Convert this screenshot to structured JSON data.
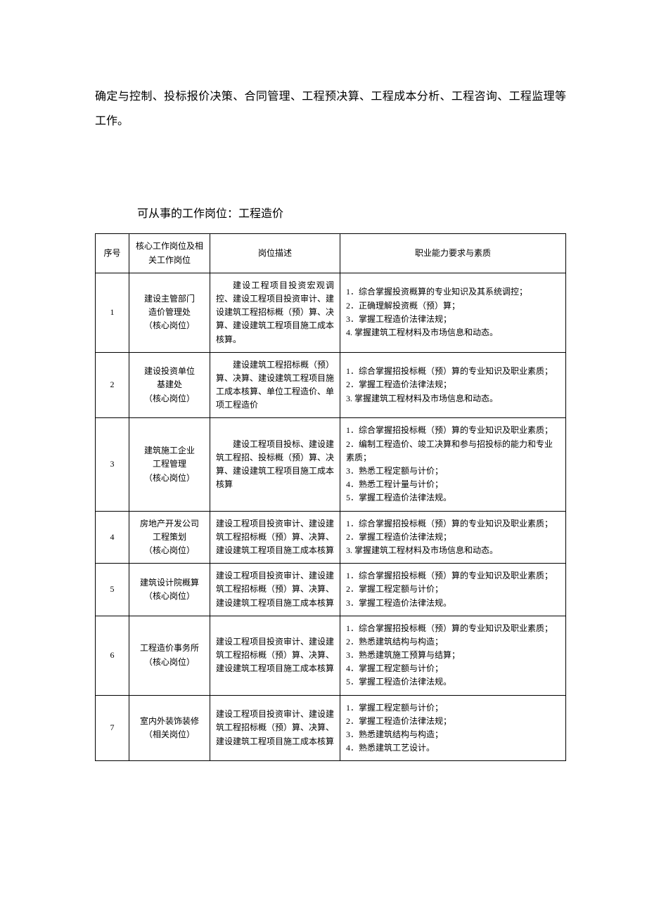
{
  "intro": "确定与控制、投标报价决策、合同管理、工程预决算、工程成本分析、工程咨询、工程监理等工作。",
  "section_title": "可从事的工作岗位：工程造价",
  "headers": {
    "num": "序号",
    "position": "核心工作岗位及相关工作岗位",
    "description": "岗位描述",
    "requirements": "职业能力要求与素质"
  },
  "rows": [
    {
      "num": "1",
      "position": "建设主管部门\n造价管理处\n（核心岗位）",
      "description_indent": "建设工程项目投资宏观调控、建设工程项目投资审计、建设建筑工程招标概（预）算、决算、建设建筑工程项目施工成本核算。",
      "requirements": "1．综合掌握投资概算的专业知识及其系统调控；\n2．正确理解投资概（预）算；\n3．掌握工程造价法律法规；\n4. 掌握建筑工程材料及市场信息和动态。"
    },
    {
      "num": "2",
      "position": "建设投资单位\n基建处\n（核心岗位）",
      "description_indent": "建设建筑工程招标概（预）算、决算、建设建筑工程项目施工成本核算、单位工程造价、单项工程造价",
      "requirements": "1．综合掌握招投标概（预）算的专业知识及职业素质；\n2．掌握工程造价法律法规；\n3. 掌握建筑工程材料及市场信息和动态。"
    },
    {
      "num": "3",
      "position": "建筑施工企业\n工程管理\n（核心岗位）",
      "description_indent": "建设工程项目投标、建设建筑工程招、投标概（预）算、决算、建设建筑工程项目施工成本核算",
      "requirements": "1．综合掌握招投标概（预）算的专业知识及职业素质；\n2．编制工程造价、竣工决算和参与招投标的能力和专业素质；\n3．熟悉工程定额与计价；\n4．熟悉工程计量与计价；\n5．掌握工程造价法律法规。"
    },
    {
      "num": "4",
      "position": "房地产开发公司\n工程策划\n（核心岗位）",
      "description": "建设工程项目投资审计、建设建筑工程招标概（预）算、决算、建设建筑工程项目施工成本核算",
      "requirements": "1．综合掌握招投标概（预）算的专业知识及职业素质；\n2．掌握工程造价法律法规；\n3. 掌握建筑工程材料及市场信息和动态。"
    },
    {
      "num": "5",
      "position": "建筑设计院概算\n（核心岗位）",
      "description": "建设工程项目投资审计、建设建筑工程招标概（预）算、决算、建设建筑工程项目施工成本核算",
      "requirements": "1．综合掌握招投标概（预）算的专业知识及职业素质；\n2．掌握工程定额与计价；\n3．掌握工程造价法律法规。"
    },
    {
      "num": "6",
      "position": "工程造价事务所\n（核心岗位）",
      "description": "建设工程项目投资审计、建设建筑工程招标概（预）算、决算、建设建筑工程项目施工成本核算",
      "requirements": "1．综合掌握招投标概（预）算的专业知识及职业素质；\n2．熟悉建筑结构与构造；\n3．熟悉建筑施工预算与结算；\n4．掌握工程定额与计价；\n5．掌握工程造价法律法规。"
    },
    {
      "num": "7",
      "position": "室内外装饰装修\n（相关岗位）",
      "description": "建设工程项目投资审计、建设建筑工程招标概（预）算、决算、建设建筑工程项目施工成本核算",
      "requirements": "1．掌握工程定额与计价；\n2．掌握工程造价法律法规；\n3．熟悉建筑结构与构造；\n4．熟悉建筑工艺设计。"
    }
  ]
}
